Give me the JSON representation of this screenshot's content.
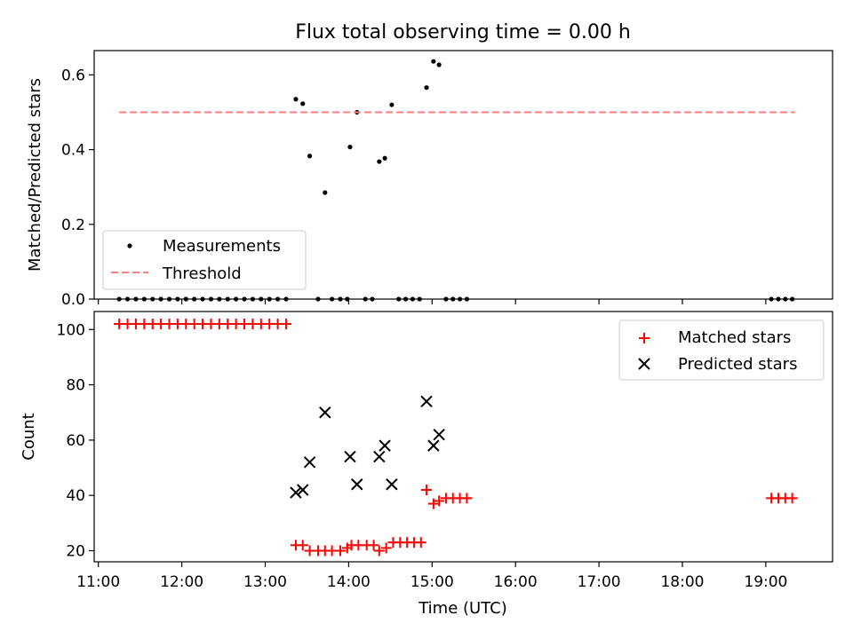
{
  "figure": {
    "title": "Flux total observing time = 0.00 h"
  },
  "chart_data": [
    {
      "type": "scatter",
      "title": "Flux total observing time = 0.00 h",
      "xlabel": "",
      "ylabel": "Matched/Predicted stars",
      "xlim": [
        "10:57",
        "19:48"
      ],
      "ylim": [
        0,
        0.665
      ],
      "yticks": [
        0.0,
        0.2,
        0.4,
        0.6
      ],
      "ytick_labels": [
        "0.0",
        "0.2",
        "0.4",
        "0.6"
      ],
      "xticks": [
        "11:00",
        "12:00",
        "13:00",
        "14:00",
        "15:00",
        "16:00",
        "17:00",
        "18:00",
        "19:00"
      ],
      "xtick_labels_visible": false,
      "grid": false,
      "legend": {
        "position": "lower-left"
      },
      "series": [
        {
          "name": "Measurements",
          "kind": "scatter",
          "marker": "dot",
          "color": "#000000",
          "points": [
            [
              "11:15",
              0
            ],
            [
              "11:21",
              0
            ],
            [
              "11:27",
              0
            ],
            [
              "11:33",
              0
            ],
            [
              "11:39",
              0
            ],
            [
              "11:45",
              0
            ],
            [
              "11:51",
              0
            ],
            [
              "11:57",
              0
            ],
            [
              "12:03",
              0
            ],
            [
              "12:09",
              0
            ],
            [
              "12:15",
              0
            ],
            [
              "12:21",
              0
            ],
            [
              "12:27",
              0
            ],
            [
              "12:33",
              0
            ],
            [
              "12:39",
              0
            ],
            [
              "12:45",
              0
            ],
            [
              "12:51",
              0
            ],
            [
              "12:57",
              0
            ],
            [
              "13:03",
              0
            ],
            [
              "13:09",
              0
            ],
            [
              "13:15",
              0
            ],
            [
              "13:22",
              0.535
            ],
            [
              "13:27",
              0.523
            ],
            [
              "13:32",
              0.383
            ],
            [
              "13:38",
              0
            ],
            [
              "13:43",
              0.285
            ],
            [
              "13:48",
              0
            ],
            [
              "13:54",
              0
            ],
            [
              "13:59",
              0
            ],
            [
              "14:01",
              0.407
            ],
            [
              "14:06",
              0.5
            ],
            [
              "14:12",
              0
            ],
            [
              "14:17",
              0
            ],
            [
              "14:22",
              0.368
            ],
            [
              "14:26",
              0.377
            ],
            [
              "14:31",
              0.52
            ],
            [
              "14:36",
              0
            ],
            [
              "14:41",
              0
            ],
            [
              "14:46",
              0
            ],
            [
              "14:51",
              0
            ],
            [
              "14:56",
              0.566
            ],
            [
              "15:01",
              0.636
            ],
            [
              "15:05",
              0.627
            ],
            [
              "15:10",
              0
            ],
            [
              "15:15",
              0
            ],
            [
              "15:20",
              0
            ],
            [
              "15:25",
              0
            ],
            [
              "19:04",
              0
            ],
            [
              "19:09",
              0
            ],
            [
              "19:14",
              0
            ],
            [
              "19:19",
              0
            ]
          ]
        },
        {
          "name": "Threshold",
          "kind": "line",
          "style": "dashed",
          "color": "#ff7f7f",
          "points": [
            [
              "11:15",
              0.5
            ],
            [
              "19:21",
              0.5
            ]
          ]
        }
      ]
    },
    {
      "type": "scatter",
      "title": "",
      "xlabel": "Time (UTC)",
      "ylabel": "Count",
      "xlim": [
        "10:57",
        "19:48"
      ],
      "ylim": [
        16,
        106.5
      ],
      "yticks": [
        20,
        40,
        60,
        80,
        100
      ],
      "ytick_labels": [
        "20",
        "40",
        "60",
        "80",
        "100"
      ],
      "xticks": [
        "11:00",
        "12:00",
        "13:00",
        "14:00",
        "15:00",
        "16:00",
        "17:00",
        "18:00",
        "19:00"
      ],
      "xtick_labels": [
        "11:00",
        "12:00",
        "13:00",
        "14:00",
        "15:00",
        "16:00",
        "17:00",
        "18:00",
        "19:00"
      ],
      "grid": false,
      "legend": {
        "position": "top-right"
      },
      "series": [
        {
          "name": "Matched stars",
          "kind": "scatter",
          "marker": "plus",
          "color": "#ff0000",
          "points": [
            [
              "11:15",
              102
            ],
            [
              "11:21",
              102
            ],
            [
              "11:27",
              102
            ],
            [
              "11:33",
              102
            ],
            [
              "11:39",
              102
            ],
            [
              "11:45",
              102
            ],
            [
              "11:51",
              102
            ],
            [
              "11:57",
              102
            ],
            [
              "12:03",
              102
            ],
            [
              "12:09",
              102
            ],
            [
              "12:15",
              102
            ],
            [
              "12:21",
              102
            ],
            [
              "12:27",
              102
            ],
            [
              "12:33",
              102
            ],
            [
              "12:39",
              102
            ],
            [
              "12:45",
              102
            ],
            [
              "12:51",
              102
            ],
            [
              "12:57",
              102
            ],
            [
              "13:03",
              102
            ],
            [
              "13:09",
              102
            ],
            [
              "13:15",
              102
            ],
            [
              "13:22",
              22
            ],
            [
              "13:27",
              22
            ],
            [
              "13:32",
              20
            ],
            [
              "13:38",
              20
            ],
            [
              "13:43",
              20
            ],
            [
              "13:48",
              20
            ],
            [
              "13:54",
              20
            ],
            [
              "13:59",
              21
            ],
            [
              "14:02",
              22
            ],
            [
              "14:07",
              22
            ],
            [
              "14:13",
              22
            ],
            [
              "14:18",
              22
            ],
            [
              "14:22",
              20
            ],
            [
              "14:27",
              21
            ],
            [
              "14:32",
              23
            ],
            [
              "14:37",
              23
            ],
            [
              "14:42",
              23
            ],
            [
              "14:47",
              23
            ],
            [
              "14:52",
              23
            ],
            [
              "14:56",
              42
            ],
            [
              "15:01",
              37
            ],
            [
              "15:05",
              38
            ],
            [
              "15:10",
              39
            ],
            [
              "15:15",
              39
            ],
            [
              "15:20",
              39
            ],
            [
              "15:25",
              39
            ],
            [
              "19:04",
              39
            ],
            [
              "19:09",
              39
            ],
            [
              "19:14",
              39
            ],
            [
              "19:19",
              39
            ]
          ]
        },
        {
          "name": "Predicted stars",
          "kind": "scatter",
          "marker": "x",
          "color": "#000000",
          "points": [
            [
              "13:22",
              41
            ],
            [
              "13:27",
              42
            ],
            [
              "13:32",
              52
            ],
            [
              "13:43",
              70
            ],
            [
              "14:01",
              54
            ],
            [
              "14:06",
              44
            ],
            [
              "14:22",
              54
            ],
            [
              "14:26",
              58
            ],
            [
              "14:31",
              44
            ],
            [
              "14:56",
              74
            ],
            [
              "15:01",
              58
            ],
            [
              "15:05",
              62
            ]
          ]
        }
      ]
    }
  ]
}
